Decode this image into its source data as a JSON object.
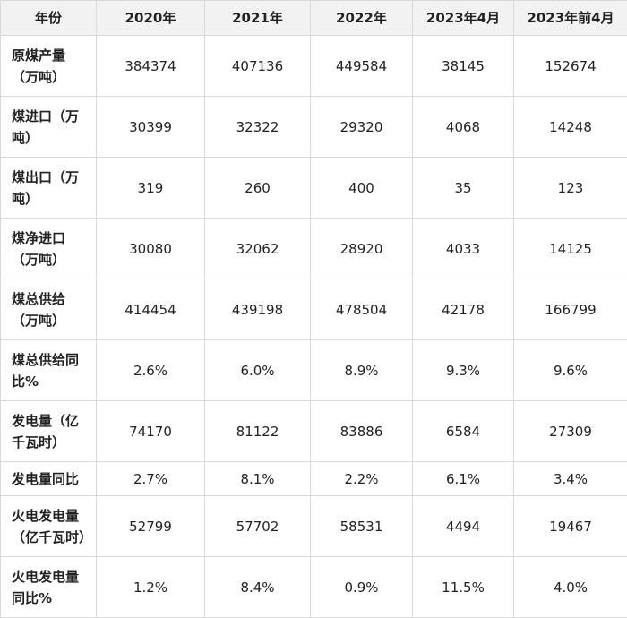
{
  "table": {
    "header": [
      "年份",
      "2020年",
      "2021年",
      "2022年",
      "2023年4月",
      "2023年前4月"
    ],
    "rows": [
      [
        "原煤产量（万吨）",
        "384374",
        "407136",
        "449584",
        "38145",
        "152674"
      ],
      [
        "煤进口（万吨）",
        "30399",
        "32322",
        "29320",
        "4068",
        "14248"
      ],
      [
        "煤出口（万吨）",
        "319",
        "260",
        "400",
        "35",
        "123"
      ],
      [
        "煤净进口（万吨）",
        "30080",
        "32062",
        "28920",
        "4033",
        "14125"
      ],
      [
        "煤总供给（万吨）",
        "414454",
        "439198",
        "478504",
        "42178",
        "166799"
      ],
      [
        "煤总供给同比%",
        "2.6%",
        "6.0%",
        "8.9%",
        "9.3%",
        "9.6%"
      ],
      [
        "发电量（亿千瓦时）",
        "74170",
        "81122",
        "83886",
        "6584",
        "27309"
      ],
      [
        "发电量同比",
        "2.7%",
        "8.1%",
        "2.2%",
        "6.1%",
        "3.4%"
      ],
      [
        "火电发电量（亿千瓦时）",
        "52799",
        "57702",
        "58531",
        "4494",
        "19467"
      ],
      [
        "火电发电量同比%",
        "1.2%",
        "8.4%",
        "0.9%",
        "11.5%",
        "4.0%"
      ]
    ]
  }
}
